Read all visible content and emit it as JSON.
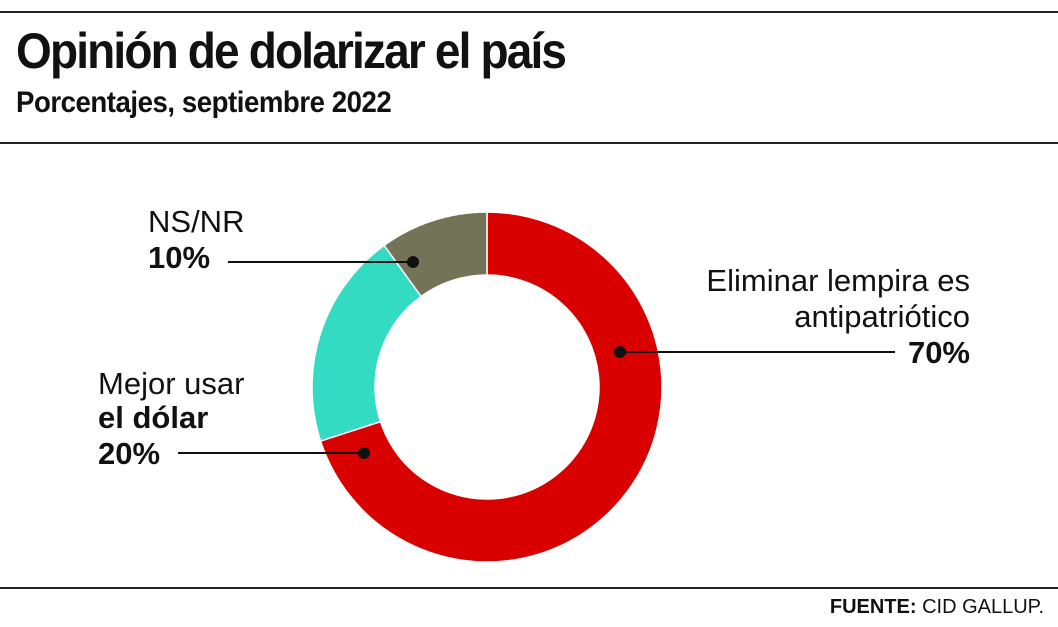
{
  "title": "Opinión de dolarizar el país",
  "subtitle": "Porcentajes, septiembre 2022",
  "source_label": "FUENTE:",
  "source": "CID GALLUP.",
  "chart_data": {
    "type": "pie",
    "variant": "donut",
    "title": "Opinión de dolarizar el país",
    "subtitle": "Porcentajes, septiembre 2022",
    "slices": [
      {
        "label_lines": [
          "Eliminar lempira es",
          "antipatriótico"
        ],
        "value": 70,
        "value_label": "70%",
        "color": "#d90000"
      },
      {
        "label_lines": [
          "Mejor usar",
          "el dólar"
        ],
        "value": 20,
        "value_label": "20%",
        "color": "#33dbc3"
      },
      {
        "label_lines": [
          "NS/NR"
        ],
        "value": 10,
        "value_label": "10%",
        "color": "#737358"
      }
    ],
    "legend": "none",
    "grid": false
  }
}
